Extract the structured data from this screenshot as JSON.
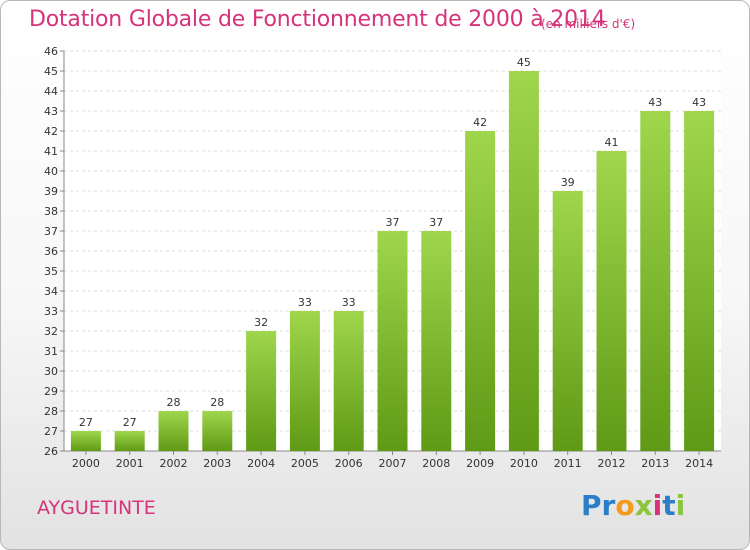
{
  "header": {
    "title": "Dotation Globale de Fonctionnement de 2000 à 2014",
    "subtitle": "(en milliers d'€)"
  },
  "footer": {
    "commune": "AYGUETINTE",
    "logo": "Proxiti"
  },
  "colors": {
    "accent": "#d6337a",
    "bar_top": "#9fd64c",
    "bar_bottom": "#5f9a16"
  },
  "chart_data": {
    "type": "bar",
    "categories": [
      "2000",
      "2001",
      "2002",
      "2003",
      "2004",
      "2005",
      "2006",
      "2007",
      "2008",
      "2009",
      "2010",
      "2011",
      "2012",
      "2013",
      "2014"
    ],
    "values": [
      27,
      27,
      28,
      28,
      32,
      33,
      33,
      37,
      37,
      42,
      45,
      39,
      41,
      43,
      43
    ],
    "title": "Dotation Globale de Fonctionnement de 2000 à 2014",
    "subtitle": "(en milliers d'€)",
    "xlabel": "",
    "ylabel": "",
    "ylim": [
      26,
      46
    ],
    "yticks": [
      26,
      27,
      28,
      29,
      30,
      31,
      32,
      33,
      34,
      35,
      36,
      37,
      38,
      39,
      40,
      41,
      42,
      43,
      44,
      45,
      46
    ],
    "grid": true,
    "legend": "none"
  }
}
